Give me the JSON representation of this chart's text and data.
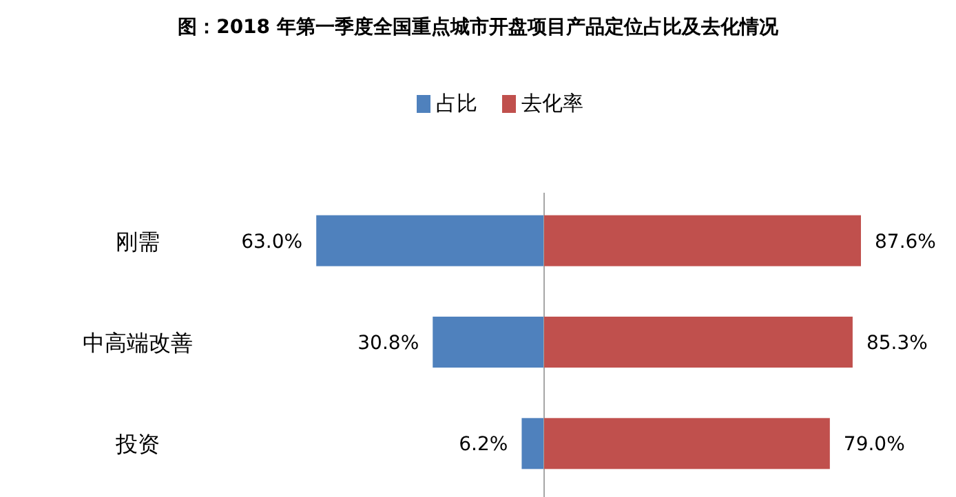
{
  "chart_data": [
    {
      "type": "bar",
      "orientation": "horizontal",
      "title": "图：2018 年第一季度全国重点城市开盘项目产品定位占比及去化情况",
      "categories": [
        "刚需",
        "中高端改善",
        "投资"
      ],
      "legend": "top",
      "series": [
        {
          "name": "占比",
          "color": "#4f81bd",
          "values": [
            63.0,
            30.8,
            6.2
          ],
          "value_labels": [
            "63.0%",
            "30.8%",
            "6.2%"
          ]
        }
      ]
    },
    {
      "type": "bar",
      "orientation": "horizontal",
      "categories": [
        null,
        null,
        null
      ],
      "legend": "top",
      "series": [
        {
          "name": "去化率",
          "color": "#c0504d",
          "values": [
            87.6,
            85.3,
            79.0
          ],
          "value_labels": [
            "87.6%",
            "85.3%",
            "79.0%"
          ]
        }
      ]
    }
  ]
}
